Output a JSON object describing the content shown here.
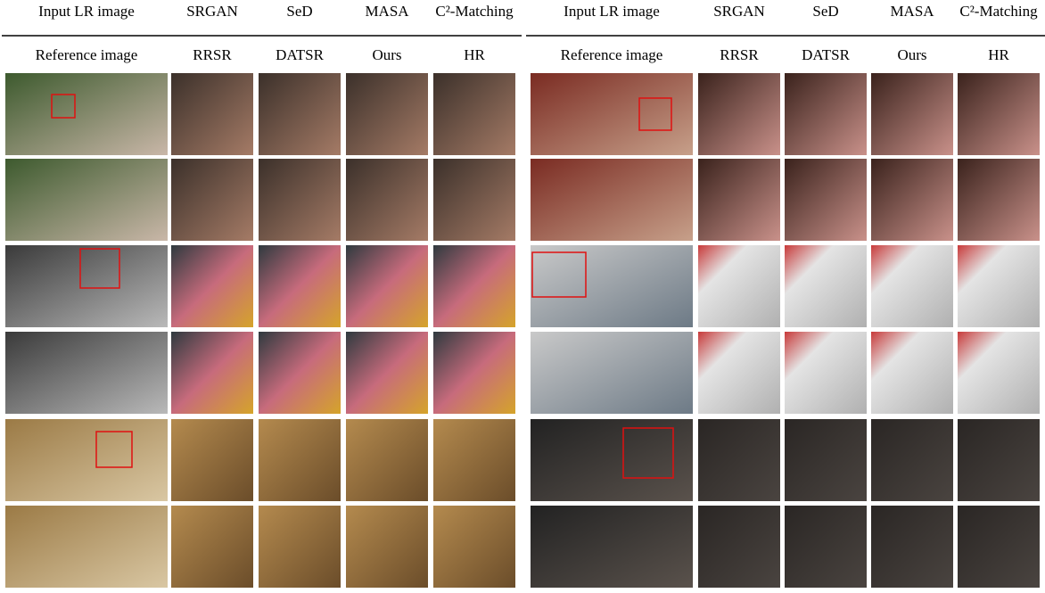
{
  "header": {
    "top": [
      "Input LR image",
      "SRGAN",
      "SeD",
      "MASA",
      "C²-Matching"
    ],
    "bottom": [
      "Reference image",
      "RRSR",
      "DATSR",
      "Ours",
      "HR"
    ]
  }
}
